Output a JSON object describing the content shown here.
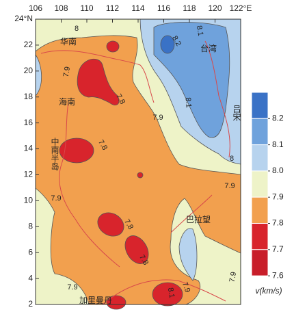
{
  "map": {
    "xlim": [
      106,
      122
    ],
    "ylim": [
      2,
      24
    ],
    "xticks": [
      106,
      108,
      110,
      112,
      114,
      116,
      118,
      120,
      {
        "value": 122,
        "label": "122°E"
      }
    ],
    "yticks": [
      2,
      4,
      6,
      8,
      10,
      12,
      14,
      16,
      18,
      20,
      22,
      {
        "value": 24,
        "label": "24°N"
      }
    ],
    "places": [
      "华南",
      "海南",
      "中南半岛",
      "台湾",
      "吕宋",
      "巴拉望",
      "加里曼丹"
    ],
    "contour_labels": [
      "8",
      "7.9",
      "7.8",
      "7.9",
      "8.2",
      "8.1",
      "8.1",
      "7.8",
      "7.9",
      "7.9",
      "7.8",
      "7.8",
      "7.9",
      "8",
      "7.9",
      "7.9",
      "8.1"
    ],
    "colorbar": {
      "ticks": [
        8.2,
        8.1,
        {
          "value": 8,
          "label": "8.0"
        },
        7.9,
        7.8,
        7.7,
        7.6
      ],
      "colors": [
        "#3a72c6",
        "#6fa2dc",
        "#b7d3ee",
        "#eef3c8",
        "#f2a04e",
        "#d8242c",
        "#c81e2a"
      ],
      "label": "v(km/s)"
    }
  }
}
